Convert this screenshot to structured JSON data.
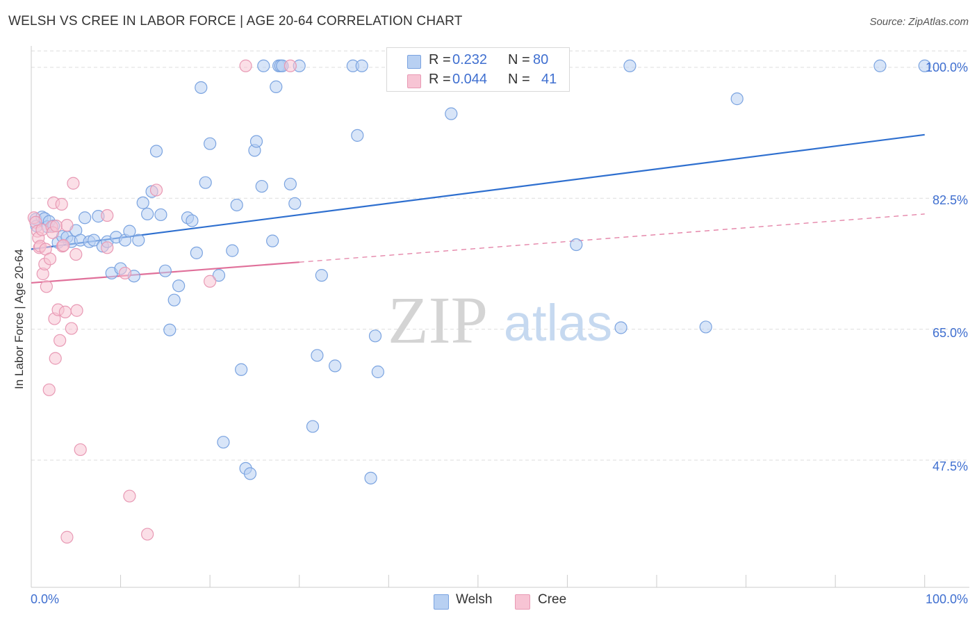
{
  "title": "WELSH VS CREE IN LABOR FORCE | AGE 20-64 CORRELATION CHART",
  "source": "Source: ZipAtlas.com",
  "watermark": {
    "zip": "ZIP",
    "atlas": "atlas"
  },
  "legend": {
    "rows": [
      {
        "r_label": "R =",
        "r_value": "0.232",
        "n_label": "N =",
        "n_value": "80"
      },
      {
        "r_label": "R =",
        "r_value": "0.044",
        "n_label": "N =",
        "n_value": "41"
      }
    ]
  },
  "bottom_legend": {
    "welsh": "Welsh",
    "cree": "Cree"
  },
  "colors": {
    "welsh_fill": "#b8d0f2",
    "welsh_stroke": "#7aa3e0",
    "welsh_line": "#2e6fcf",
    "cree_fill": "#f7c4d4",
    "cree_stroke": "#e899b4",
    "cree_line": "#e0709a",
    "tick_text": "#3f6fd0",
    "grid": "#dddddd"
  },
  "chart_data": {
    "type": "scatter",
    "title": "WELSH VS CREE IN LABOR FORCE | AGE 20-64 CORRELATION CHART",
    "xlabel": "",
    "ylabel": "In Labor Force | Age 20-64",
    "x_tick_labels": [
      "0.0%",
      "100.0%"
    ],
    "y_tick_labels": [
      "100.0%",
      "82.5%",
      "65.0%",
      "47.5%"
    ],
    "y_ticks": [
      100,
      82.5,
      65,
      47.5
    ],
    "xlim": [
      0,
      105
    ],
    "ylim": [
      30.5,
      102.5
    ],
    "grid": true,
    "legend_position": "top-center",
    "series": [
      {
        "name": "Welsh",
        "R": 0.232,
        "N": 80,
        "trend": {
          "x": [
            0,
            100
          ],
          "y": [
            75.7,
            91.0
          ],
          "dashed_from": null
        },
        "points": [
          [
            0.5,
            79.7
          ],
          [
            0.6,
            78.8
          ],
          [
            1.2,
            80.0
          ],
          [
            1.5,
            79.8
          ],
          [
            1.8,
            78.7
          ],
          [
            2.0,
            79.4
          ],
          [
            2.5,
            78.8
          ],
          [
            3.0,
            76.6
          ],
          [
            3.5,
            77.4
          ],
          [
            4.0,
            77.3
          ],
          [
            4.5,
            76.7
          ],
          [
            5.0,
            78.2
          ],
          [
            5.5,
            76.9
          ],
          [
            6.0,
            79.9
          ],
          [
            6.5,
            76.7
          ],
          [
            7.0,
            76.9
          ],
          [
            7.5,
            80.1
          ],
          [
            8.0,
            76.1
          ],
          [
            8.5,
            76.7
          ],
          [
            9.0,
            72.5
          ],
          [
            9.5,
            77.3
          ],
          [
            10.0,
            73.1
          ],
          [
            10.5,
            76.9
          ],
          [
            11.0,
            78.1
          ],
          [
            11.5,
            72.1
          ],
          [
            12.0,
            76.9
          ],
          [
            12.5,
            81.9
          ],
          [
            13.0,
            80.4
          ],
          [
            13.5,
            83.4
          ],
          [
            14.0,
            88.8
          ],
          [
            14.5,
            80.3
          ],
          [
            15.0,
            72.8
          ],
          [
            15.5,
            64.9
          ],
          [
            16.0,
            68.9
          ],
          [
            16.5,
            70.8
          ],
          [
            17.5,
            79.9
          ],
          [
            18.0,
            79.5
          ],
          [
            18.5,
            75.2
          ],
          [
            19.0,
            97.3
          ],
          [
            19.5,
            84.6
          ],
          [
            20.0,
            89.8
          ],
          [
            21.0,
            72.2
          ],
          [
            21.5,
            49.9
          ],
          [
            22.5,
            75.5
          ],
          [
            23.0,
            81.6
          ],
          [
            23.5,
            59.6
          ],
          [
            24.0,
            46.4
          ],
          [
            24.5,
            45.7
          ],
          [
            25.0,
            88.9
          ],
          [
            25.2,
            90.1
          ],
          [
            25.8,
            84.1
          ],
          [
            26.0,
            100.2
          ],
          [
            27.0,
            76.8
          ],
          [
            27.4,
            97.4
          ],
          [
            27.7,
            100.2
          ],
          [
            27.9,
            100.2
          ],
          [
            28.1,
            100.2
          ],
          [
            29.0,
            84.4
          ],
          [
            29.5,
            81.8
          ],
          [
            30.0,
            100.2
          ],
          [
            31.5,
            52.0
          ],
          [
            32.0,
            61.5
          ],
          [
            32.5,
            72.2
          ],
          [
            34.0,
            60.1
          ],
          [
            36.0,
            100.2
          ],
          [
            36.5,
            90.9
          ],
          [
            37.0,
            100.2
          ],
          [
            38.0,
            45.1
          ],
          [
            38.5,
            64.1
          ],
          [
            38.8,
            59.3
          ],
          [
            41.0,
            100.2
          ],
          [
            47.0,
            93.8
          ],
          [
            61.0,
            76.3
          ],
          [
            66.0,
            65.2
          ],
          [
            67.0,
            100.2
          ],
          [
            75.5,
            65.3
          ],
          [
            79.0,
            95.8
          ],
          [
            95.0,
            100.2
          ],
          [
            100.0,
            100.2
          ],
          [
            41.5,
            100.2
          ]
        ]
      },
      {
        "name": "Cree",
        "R": 0.044,
        "N": 41,
        "trend": {
          "x": [
            0,
            100
          ],
          "y": [
            71.2,
            80.4
          ],
          "dashed_from": 30
        },
        "points": [
          [
            0.3,
            79.9
          ],
          [
            0.5,
            79.3
          ],
          [
            0.7,
            78.1
          ],
          [
            0.8,
            77.2
          ],
          [
            0.9,
            75.9
          ],
          [
            1.0,
            76.1
          ],
          [
            1.2,
            78.3
          ],
          [
            1.3,
            72.4
          ],
          [
            1.5,
            73.7
          ],
          [
            1.6,
            75.7
          ],
          [
            1.7,
            70.7
          ],
          [
            2.0,
            56.9
          ],
          [
            2.1,
            74.4
          ],
          [
            2.3,
            78.7
          ],
          [
            2.4,
            77.9
          ],
          [
            2.5,
            81.9
          ],
          [
            2.6,
            66.4
          ],
          [
            2.7,
            61.1
          ],
          [
            2.8,
            78.8
          ],
          [
            3.0,
            67.6
          ],
          [
            3.2,
            63.5
          ],
          [
            3.4,
            81.7
          ],
          [
            3.5,
            76.1
          ],
          [
            3.6,
            76.2
          ],
          [
            3.8,
            67.3
          ],
          [
            4.0,
            78.9
          ],
          [
            4.0,
            37.2
          ],
          [
            4.5,
            65.1
          ],
          [
            4.7,
            84.5
          ],
          [
            5.0,
            75.0
          ],
          [
            5.1,
            67.5
          ],
          [
            5.5,
            48.9
          ],
          [
            8.5,
            75.9
          ],
          [
            8.5,
            80.2
          ],
          [
            10.5,
            72.5
          ],
          [
            11.0,
            42.7
          ],
          [
            13.0,
            37.6
          ],
          [
            14.0,
            83.6
          ],
          [
            20.0,
            71.4
          ],
          [
            29.0,
            100.2
          ],
          [
            24.0,
            100.2
          ]
        ]
      }
    ]
  }
}
